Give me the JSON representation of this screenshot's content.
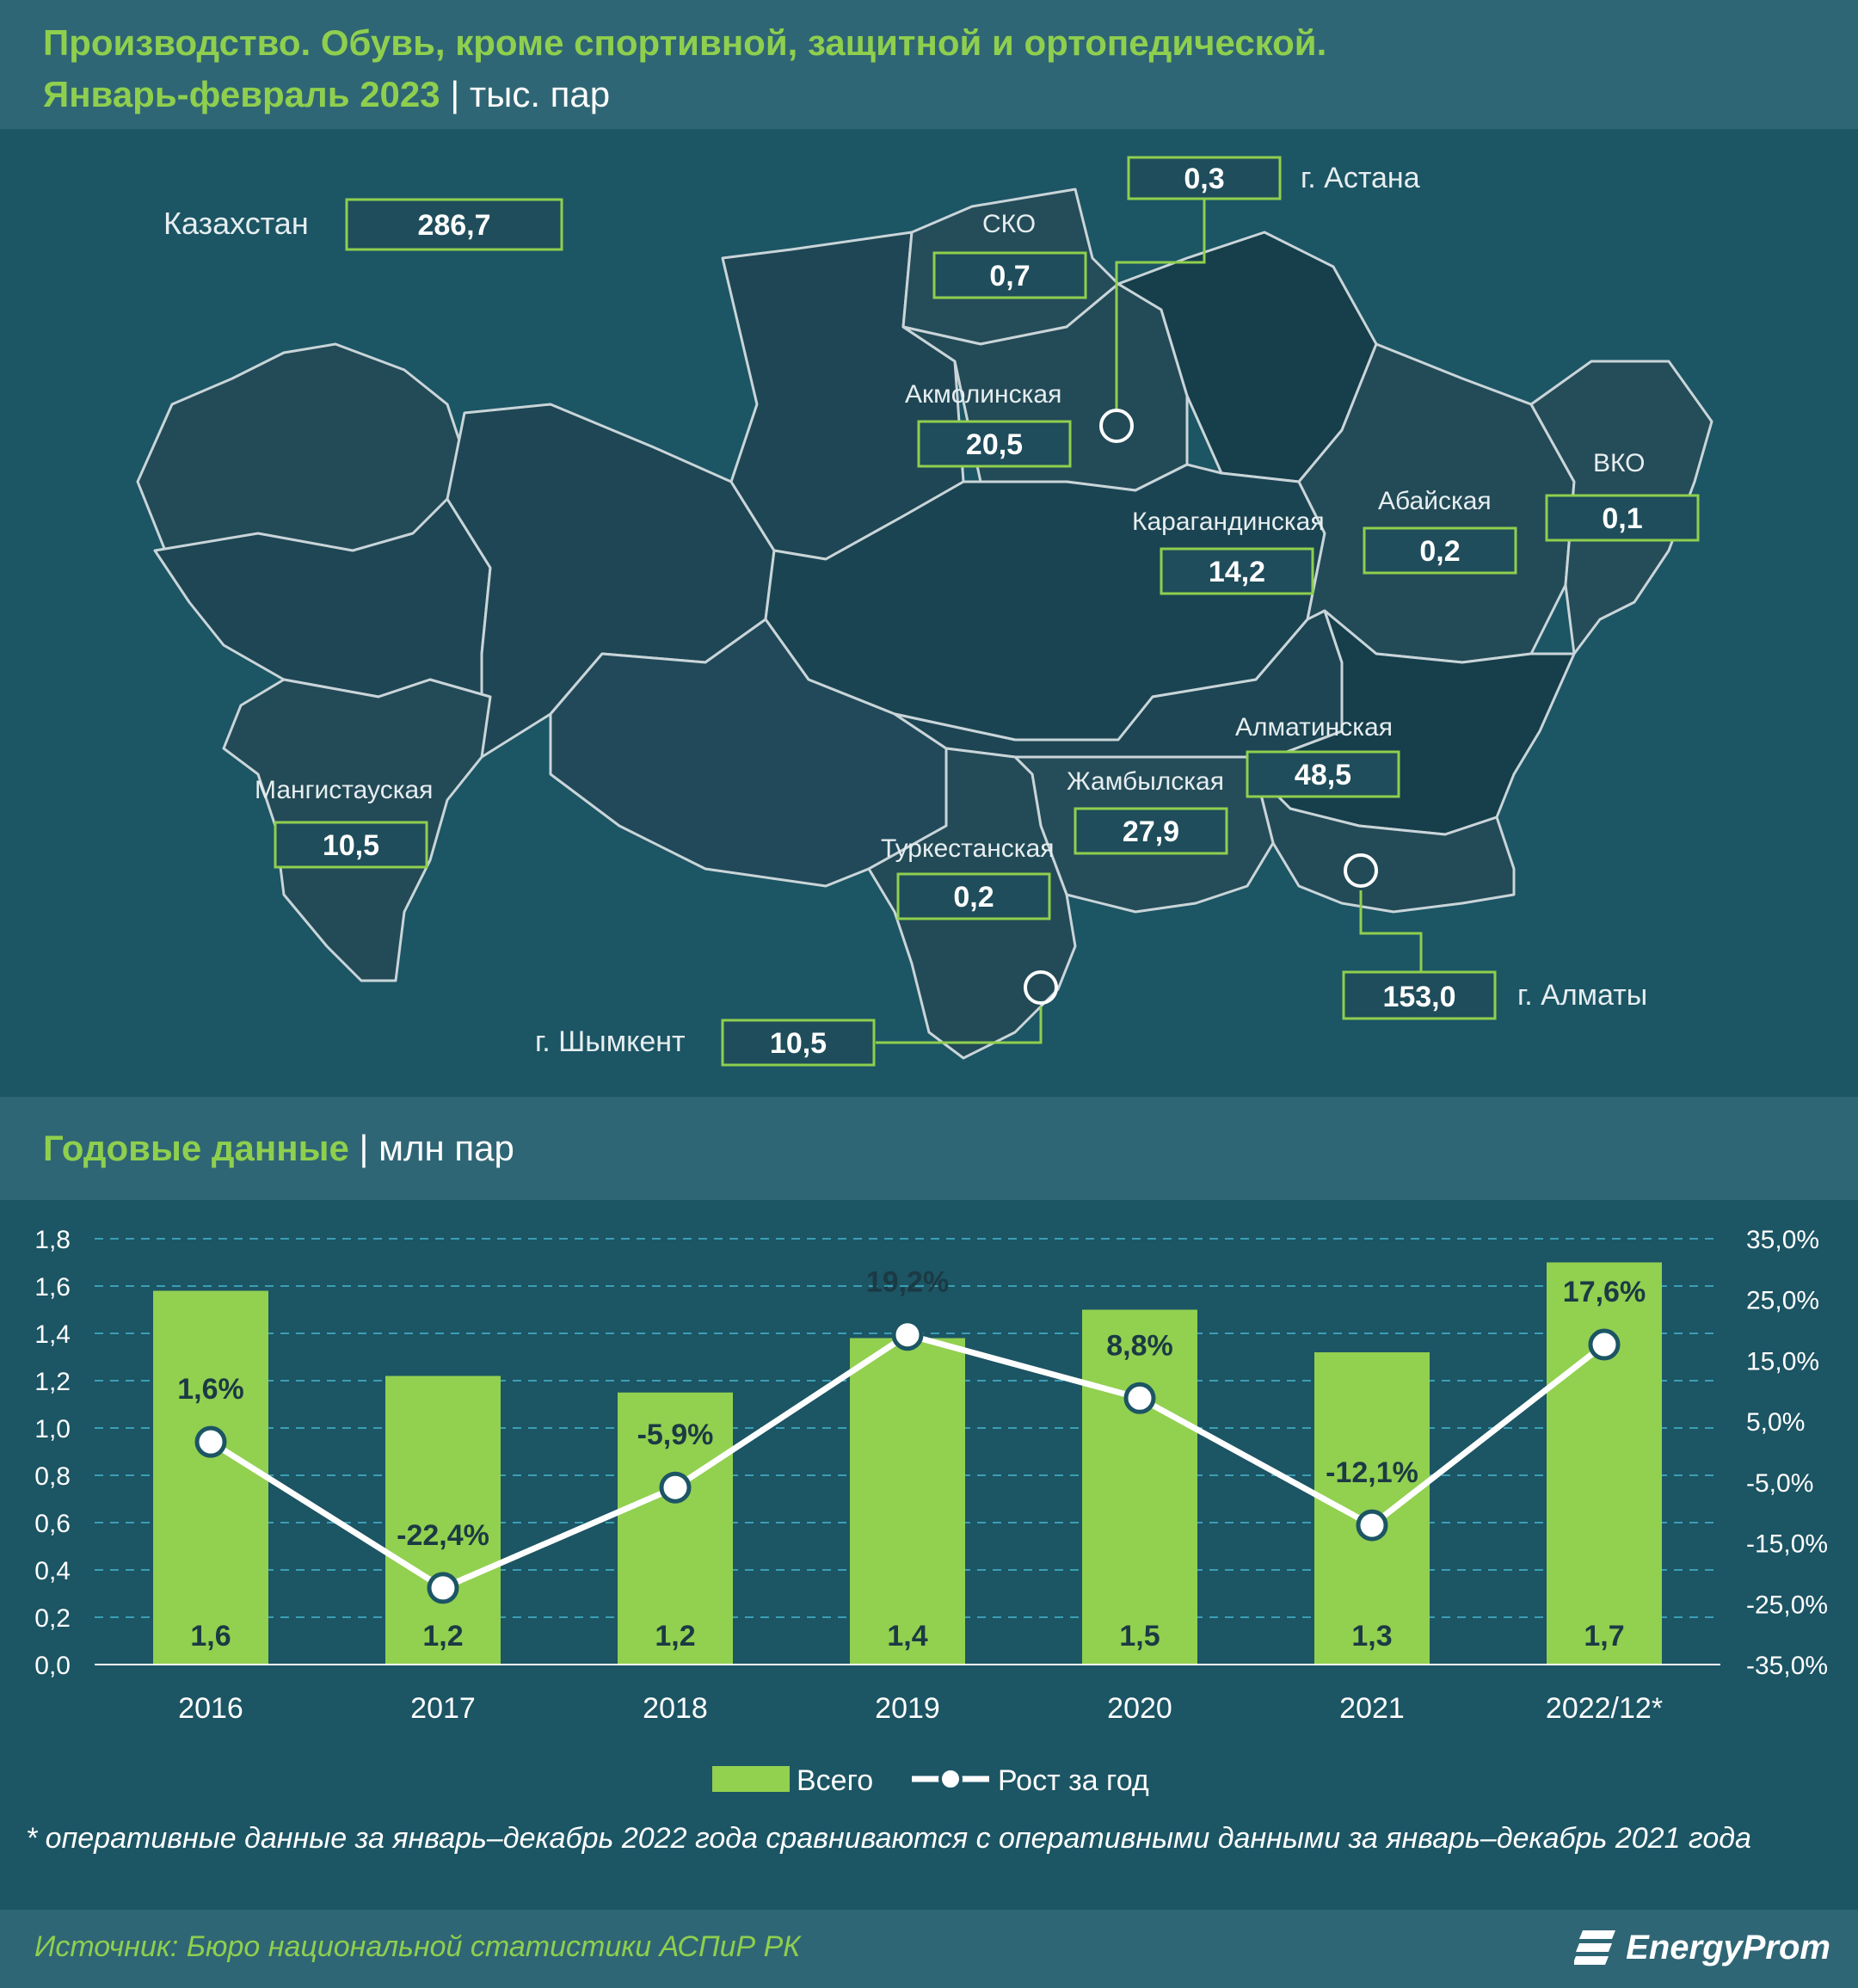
{
  "header": {
    "title_line1": "Производство. Обувь, кроме спортивной, защитной и ортопедической.",
    "title_line2_green": "Январь-февраль 2023",
    "title_line2_sep": "|",
    "title_line2_unit": "тыс. пар"
  },
  "map": {
    "country": {
      "label": "Казахстан",
      "value": "286,7"
    },
    "regions": [
      {
        "id": "astana",
        "label": "г. Астана",
        "value": "0,3"
      },
      {
        "id": "sko",
        "label": "СКО",
        "value": "0,7"
      },
      {
        "id": "akmola",
        "label": "Акмолинская",
        "value": "20,5"
      },
      {
        "id": "karaganda",
        "label": "Карагандинская",
        "value": "14,2"
      },
      {
        "id": "abai",
        "label": "Абайская",
        "value": "0,2"
      },
      {
        "id": "vko",
        "label": "ВКО",
        "value": "0,1"
      },
      {
        "id": "almaty-region",
        "label": "Алматинская",
        "value": "48,5"
      },
      {
        "id": "zhambyl",
        "label": "Жамбылская",
        "value": "27,9"
      },
      {
        "id": "mangystau",
        "label": "Мангистауская",
        "value": "10,5"
      },
      {
        "id": "turkestan",
        "label": "Туркестанская",
        "value": "0,2"
      },
      {
        "id": "almaty-city",
        "label": "г. Алматы",
        "value": "153,0"
      },
      {
        "id": "shymkent",
        "label": "г. Шымкент",
        "value": "10,5"
      }
    ]
  },
  "subheader": {
    "green": "Годовые данные",
    "sep": "|",
    "unit": "млн пар"
  },
  "chart_data": {
    "type": "bar",
    "categories": [
      "2016",
      "2017",
      "2018",
      "2019",
      "2020",
      "2021",
      "2022/12*"
    ],
    "series": [
      {
        "name": "Всего",
        "type": "bar",
        "axis": "left",
        "values": [
          1.6,
          1.2,
          1.2,
          1.4,
          1.5,
          1.3,
          1.7
        ],
        "bar_heights": [
          1.58,
          1.22,
          1.15,
          1.38,
          1.5,
          1.32,
          1.7
        ],
        "labels": [
          "1,6",
          "1,2",
          "1,2",
          "1,4",
          "1,5",
          "1,3",
          "1,7"
        ]
      },
      {
        "name": "Рост за год",
        "type": "line",
        "axis": "right",
        "values": [
          1.6,
          -22.4,
          -5.9,
          19.2,
          8.8,
          -12.1,
          17.6
        ],
        "labels": [
          "1,6%",
          "-22,4%",
          "-5,9%",
          "19,2%",
          "8,8%",
          "-12,1%",
          "17,6%"
        ]
      }
    ],
    "left_axis": {
      "min": 0,
      "max": 1.8,
      "ticks": [
        "0,0",
        "0,2",
        "0,4",
        "0,6",
        "0,8",
        "1,0",
        "1,2",
        "1,4",
        "1,6",
        "1,8"
      ]
    },
    "right_axis": {
      "min": -35,
      "max": 35,
      "ticks": [
        "-35,0%",
        "-25,0%",
        "-15,0%",
        "-5,0%",
        "5,0%",
        "15,0%",
        "25,0%",
        "35,0%"
      ]
    },
    "grid": true,
    "legend_position": "bottom",
    "colors": {
      "bar": "#92d050",
      "line": "#ffffff",
      "grid": "#3b9fb5"
    }
  },
  "footnote": "* оперативные данные за январь–декабрь 2022 года сравниваются с оперативными данными за январь–декабрь 2021 года",
  "source": "Источник: Бюро национальной статистики АСПиР РК",
  "logo": "EnergyProm"
}
